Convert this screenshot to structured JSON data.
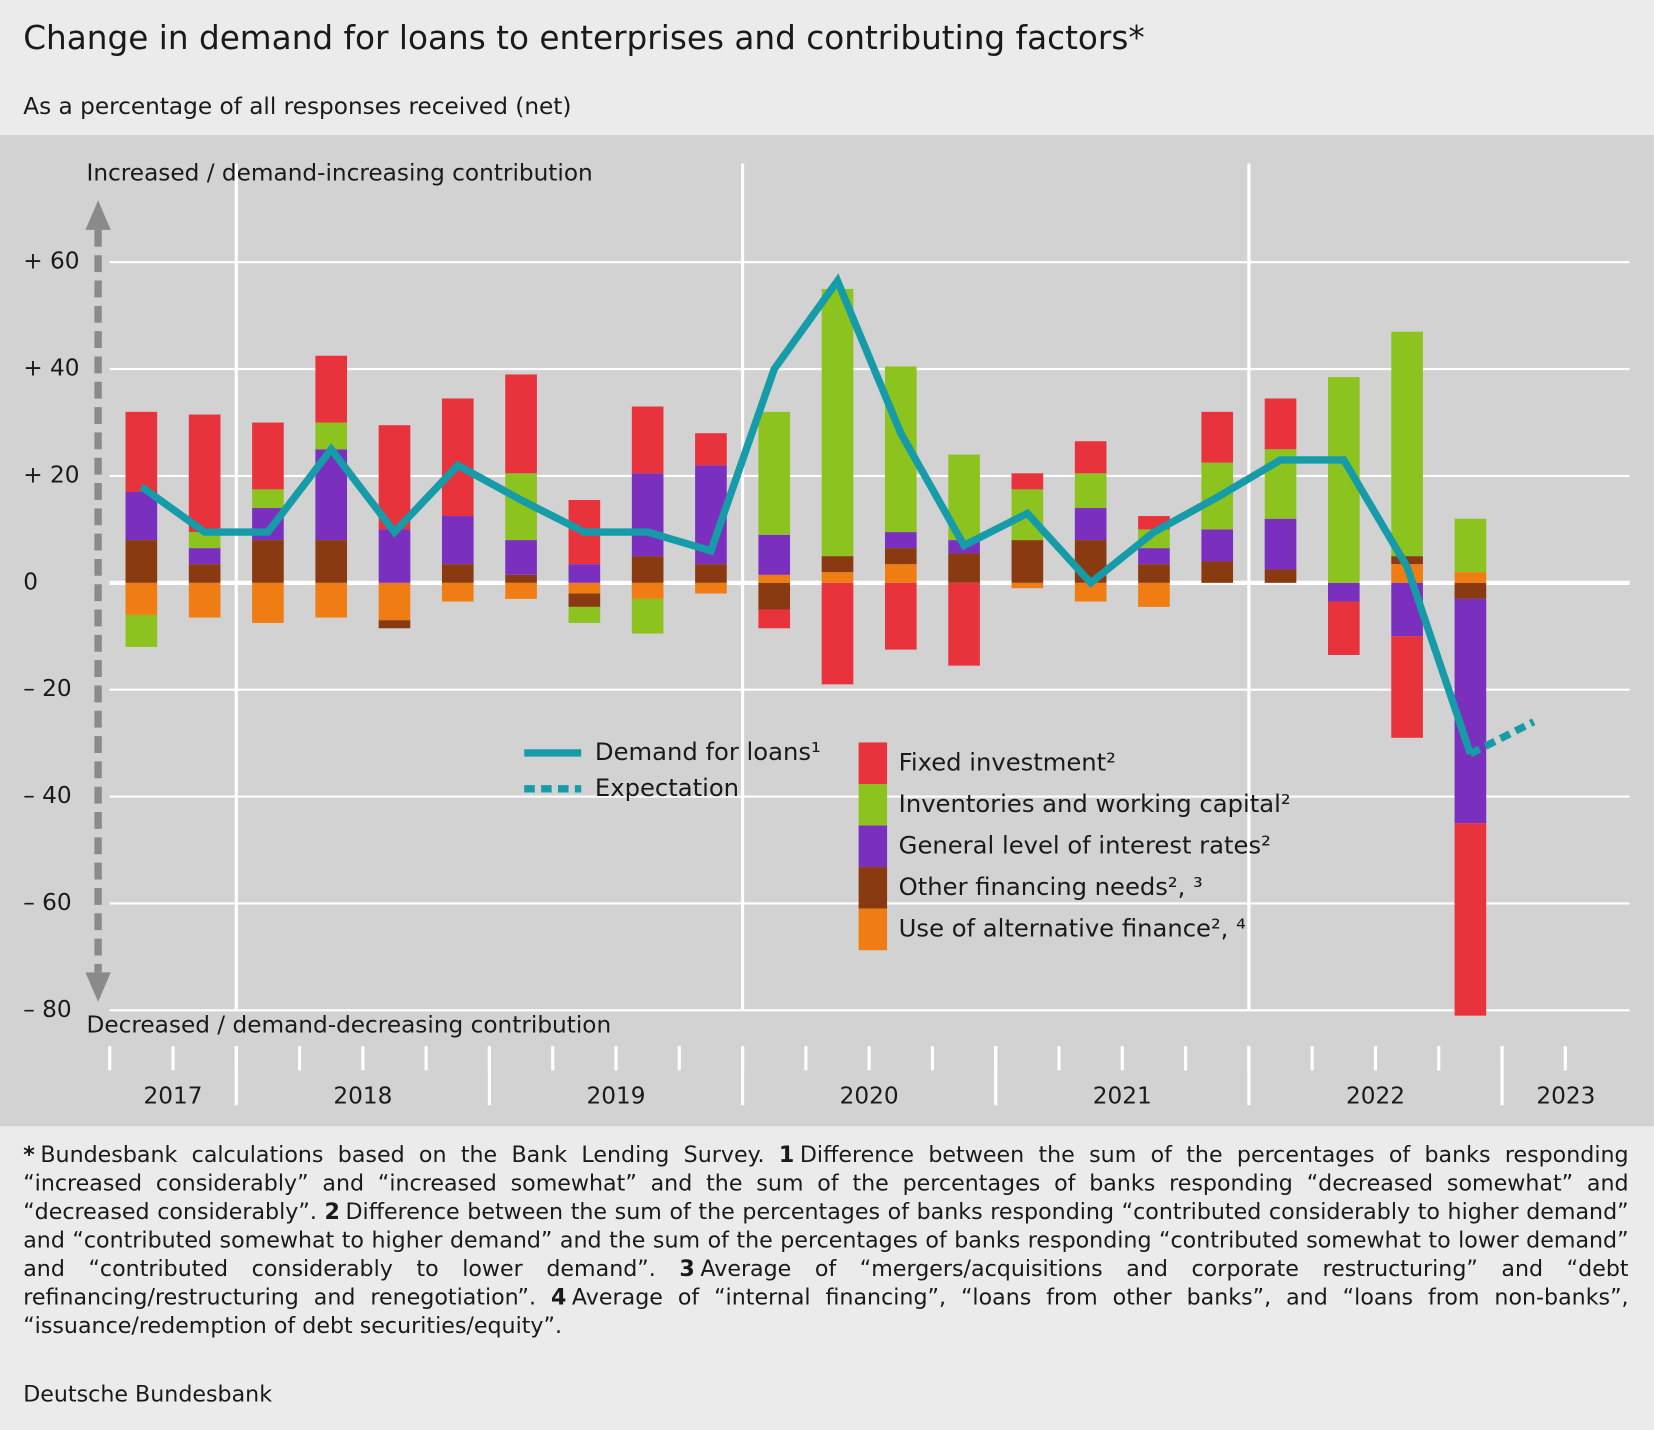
{
  "chart_data": {
    "type": "bar",
    "title": "Change in demand for loans to enterprises and contributing factors*",
    "subtitle": "As a percentage of all responses received (net)",
    "annotations": [
      "Increased / demand-increasing contribution",
      "Decreased / demand-decreasing contribution"
    ],
    "x_labels": [
      "2017",
      "2018",
      "2019",
      "2020",
      "2021",
      "2022",
      "2023"
    ],
    "categories": [
      null,
      null,
      null,
      null,
      null,
      null,
      null,
      null,
      null,
      null,
      null,
      null,
      null,
      null,
      null,
      null,
      null,
      null,
      null,
      null,
      null,
      null,
      null
    ],
    "ylim": [
      -80,
      70
    ],
    "yticks": [
      {
        "value": -80,
        "label": "– 80"
      },
      {
        "value": -60,
        "label": "– 60"
      },
      {
        "value": -40,
        "label": "– 40"
      },
      {
        "value": -20,
        "label": "– 20"
      },
      0,
      {
        "value": 20,
        "label": "+ 20"
      },
      {
        "value": 40,
        "label": "+ 40"
      },
      {
        "value": 60,
        "label": "+ 60"
      }
    ],
    "grid": true,
    "series": [
      {
        "name": "Use of alternative finance², ⁴",
        "color": "#f07d14",
        "type": "bar",
        "values": [
          -6,
          -6.5,
          -7.5,
          -6.5,
          -7,
          -3.5,
          -3,
          -2,
          -3,
          -2,
          1.5,
          2,
          3.5,
          0,
          -1,
          -3.5,
          -4.5,
          0,
          0,
          0,
          3.5,
          2,
          null
        ]
      },
      {
        "name": "Other financing needs², ³",
        "color": "#8a3a10",
        "type": "bar",
        "values": [
          8,
          3.5,
          8,
          8,
          -1.5,
          3.5,
          1.5,
          -2.5,
          5,
          3.5,
          -5,
          3,
          3,
          5.5,
          8,
          8,
          3.5,
          4,
          2.5,
          0,
          1.5,
          -3,
          null
        ]
      },
      {
        "name": "General level of interest rates²",
        "color": "#7b2fbf",
        "type": "bar",
        "values": [
          9,
          3,
          6,
          17,
          10,
          9,
          6.5,
          3.5,
          15.5,
          18.5,
          7.5,
          0,
          3,
          2.5,
          0,
          6,
          3,
          6,
          9.5,
          -3.5,
          -10,
          -42,
          null
        ]
      },
      {
        "name": "Inventories and working capital²",
        "color": "#8dc31e",
        "type": "bar",
        "values": [
          -6,
          3,
          3.5,
          5,
          0,
          0,
          12.5,
          -3,
          -6.5,
          0,
          23,
          50,
          31,
          16,
          9.5,
          6.5,
          3.5,
          12.5,
          13,
          38.5,
          42,
          10,
          null
        ]
      },
      {
        "name": "Fixed investment²",
        "color": "#e8323c",
        "type": "bar",
        "values": [
          15,
          22,
          12.5,
          12.5,
          19.5,
          22,
          18.5,
          12,
          12.5,
          6,
          -3.5,
          -19,
          -12.5,
          -15.5,
          3,
          6,
          2.5,
          9.5,
          9.5,
          -10,
          -19,
          -36,
          null
        ]
      },
      {
        "name": "Demand for loans¹",
        "color": "#169ba8",
        "type": "line",
        "values": [
          18,
          9.5,
          9.5,
          25,
          9.5,
          22,
          15.5,
          9.5,
          9.5,
          6,
          40,
          56.5,
          28,
          7,
          13,
          0,
          9.5,
          16,
          23,
          23,
          3,
          -32,
          null
        ]
      },
      {
        "name": "Expectation",
        "color": "#169ba8",
        "type": "line",
        "dashed": true,
        "values": [
          null,
          null,
          null,
          null,
          null,
          null,
          null,
          null,
          null,
          null,
          null,
          null,
          null,
          null,
          null,
          null,
          null,
          null,
          null,
          null,
          null,
          null,
          -26
        ]
      }
    ],
    "notes": [
      {
        "mark": "*",
        "text": "Bundesbank calculations based on the Bank Lending Survey."
      },
      {
        "mark": "1",
        "text": "Difference between the sum of the percentages of banks responding “increased considerably” and “increased somewhat” and the sum of the percentages of banks responding “decreased somewhat” and “decreased considerably”."
      },
      {
        "mark": "2",
        "text": "Difference between the sum of the percentages of banks responding “contributed considerably to higher demand” and “contributed somewhat to higher demand” and the sum of the percentages of banks responding “contributed somewhat to lower demand” and “contributed considerably to lower demand”."
      },
      {
        "mark": "3",
        "text": "Average of “mergers/acquisitions and corporate restructuring” and “debt refinancing/restructuring and renegotiation”."
      },
      {
        "mark": "4",
        "text": "Average of “internal financing”, “loans from other banks”, and “loans from non-banks”, “issuance/redemption of debt securities/equity”."
      }
    ],
    "source": "Deutsche Bundesbank"
  }
}
